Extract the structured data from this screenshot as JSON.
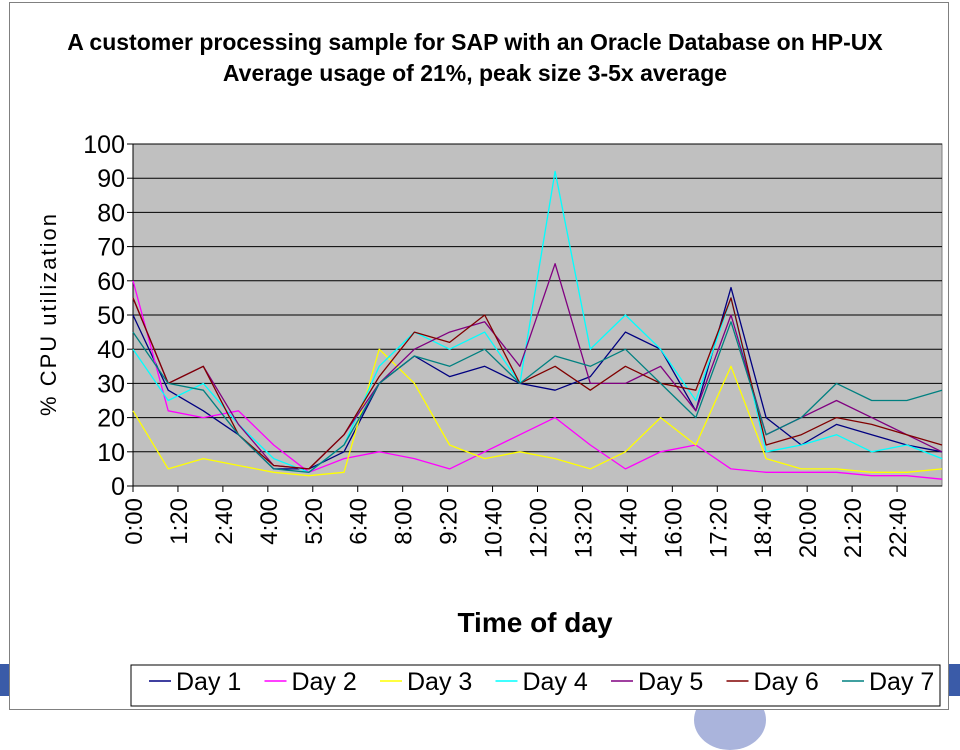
{
  "chart_data": {
    "type": "line",
    "title": "A customer processing sample for SAP with an Oracle Database on HP-UX",
    "subtitle": "Average usage of 21%, peak size 3-5x average",
    "xlabel": "Time of day",
    "ylabel": "% CPU utilization",
    "ylim": [
      0,
      100
    ],
    "y_ticks": [
      0,
      10,
      20,
      30,
      40,
      50,
      60,
      70,
      80,
      90,
      100
    ],
    "x_ticks": [
      "0:00",
      "1:20",
      "2:40",
      "4:00",
      "5:20",
      "6:40",
      "8:00",
      "9:20",
      "10:40",
      "12:00",
      "13:20",
      "14:40",
      "16:00",
      "17:20",
      "18:40",
      "20:00",
      "21:20",
      "22:40"
    ],
    "grid": "horizontal",
    "legend": "bottom",
    "x": [
      "0:00",
      "1:00",
      "2:00",
      "3:00",
      "4:00",
      "5:00",
      "6:00",
      "7:00",
      "8:00",
      "9:00",
      "10:00",
      "11:00",
      "12:00",
      "13:00",
      "14:00",
      "15:00",
      "16:00",
      "17:00",
      "18:00",
      "19:00",
      "20:00",
      "21:00",
      "22:00",
      "23:00"
    ],
    "series": [
      {
        "name": "Day 1",
        "color": "#000080",
        "values": [
          50,
          28,
          22,
          15,
          5,
          5,
          10,
          30,
          38,
          32,
          35,
          30,
          28,
          32,
          45,
          40,
          22,
          58,
          20,
          12,
          18,
          15,
          12,
          10
        ]
      },
      {
        "name": "Day 2",
        "color": "#ff00ff",
        "values": [
          60,
          22,
          20,
          22,
          12,
          4,
          8,
          10,
          8,
          5,
          10,
          15,
          20,
          12,
          5,
          10,
          12,
          5,
          4,
          4,
          4,
          3,
          3,
          2
        ]
      },
      {
        "name": "Day 3",
        "color": "#ffff00",
        "values": [
          22,
          5,
          8,
          6,
          4,
          3,
          4,
          40,
          30,
          12,
          8,
          10,
          8,
          5,
          10,
          20,
          12,
          35,
          8,
          5,
          5,
          4,
          4,
          5
        ]
      },
      {
        "name": "Day 4",
        "color": "#00ffff",
        "values": [
          40,
          25,
          30,
          18,
          8,
          4,
          12,
          35,
          45,
          40,
          45,
          30,
          92,
          40,
          50,
          40,
          25,
          55,
          10,
          12,
          15,
          10,
          12,
          8
        ]
      },
      {
        "name": "Day 5",
        "color": "#800080",
        "values": [
          55,
          30,
          35,
          18,
          6,
          5,
          15,
          30,
          40,
          45,
          48,
          35,
          65,
          30,
          30,
          35,
          22,
          50,
          15,
          20,
          25,
          20,
          15,
          10
        ]
      },
      {
        "name": "Day 6",
        "color": "#800000",
        "values": [
          55,
          30,
          35,
          15,
          6,
          5,
          15,
          32,
          45,
          42,
          50,
          30,
          35,
          28,
          35,
          30,
          28,
          55,
          12,
          15,
          20,
          18,
          15,
          12
        ]
      },
      {
        "name": "Day 7",
        "color": "#008080",
        "values": [
          45,
          30,
          28,
          15,
          5,
          4,
          12,
          30,
          38,
          35,
          40,
          30,
          38,
          35,
          40,
          30,
          20,
          48,
          15,
          20,
          30,
          25,
          25,
          28
        ]
      }
    ]
  }
}
